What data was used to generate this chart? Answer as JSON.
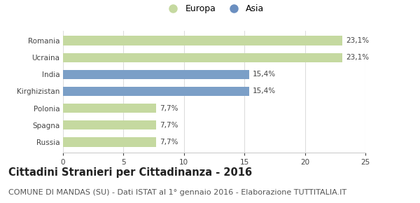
{
  "categories": [
    "Romania",
    "Ucraina",
    "India",
    "Kirghizistan",
    "Polonia",
    "Spagna",
    "Russia"
  ],
  "values": [
    23.1,
    23.1,
    15.4,
    15.4,
    7.7,
    7.7,
    7.7
  ],
  "labels": [
    "23,1%",
    "23,1%",
    "15,4%",
    "15,4%",
    "7,7%",
    "7,7%",
    "7,7%"
  ],
  "bar_colors": [
    "#c5d9a0",
    "#c5d9a0",
    "#7b9fc7",
    "#7b9fc7",
    "#c5d9a0",
    "#c5d9a0",
    "#c5d9a0"
  ],
  "legend_items": [
    {
      "label": "Europa",
      "color": "#c5d9a0"
    },
    {
      "label": "Asia",
      "color": "#6b8fc0"
    }
  ],
  "xlim": [
    0,
    25
  ],
  "xticks": [
    0,
    5,
    10,
    15,
    20,
    25
  ],
  "title": "Cittadini Stranieri per Cittadinanza - 2016",
  "subtitle": "COMUNE DI MANDAS (SU) - Dati ISTAT al 1° gennaio 2016 - Elaborazione TUTTITALIA.IT",
  "title_fontsize": 10.5,
  "subtitle_fontsize": 8,
  "label_fontsize": 7.5,
  "tick_fontsize": 7.5,
  "bg_color": "#ffffff",
  "grid_color": "#dddddd",
  "bar_height": 0.55
}
